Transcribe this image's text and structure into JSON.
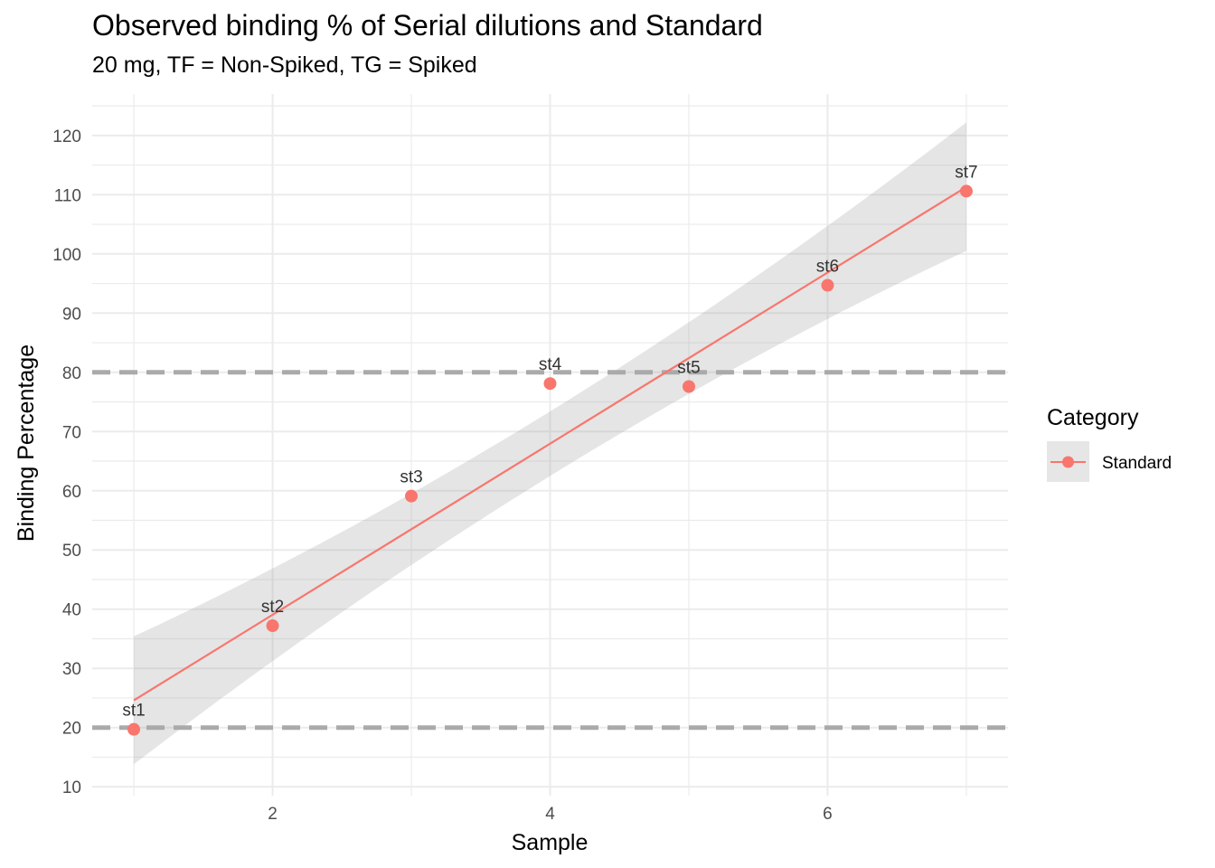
{
  "chart_data": {
    "type": "scatter",
    "title": "Observed binding % of Serial dilutions and Standard",
    "subtitle": "20 mg, TF = Non-Spiked, TG = Spiked",
    "xlabel": "Sample",
    "ylabel": "Binding Percentage",
    "xlim": [
      0.7,
      7.3
    ],
    "ylim": [
      8.5,
      127
    ],
    "x_ticks": [
      2,
      4,
      6
    ],
    "y_ticks": [
      10,
      20,
      30,
      40,
      50,
      60,
      70,
      80,
      90,
      100,
      110,
      120
    ],
    "grid": true,
    "series": [
      {
        "name": "Standard",
        "color": "#F8766D",
        "x": [
          1,
          2,
          3,
          4,
          5,
          6,
          7
        ],
        "y": [
          19.7,
          37.2,
          59.1,
          78.1,
          77.6,
          94.7,
          110.6
        ],
        "labels": [
          "st1",
          "st2",
          "st3",
          "st4",
          "st5",
          "st6",
          "st7"
        ]
      }
    ],
    "fit": {
      "type": "linear",
      "x": [
        1,
        7
      ],
      "y": [
        24.6,
        111.3
      ],
      "ci_lower": [
        13.8,
        100.5
      ],
      "ci_upper": [
        35.4,
        122.2
      ],
      "ci_mid_x": 4,
      "ci_mid_lower": [
        62.5
      ],
      "ci_mid_upper": [
        73.4
      ],
      "color": "#F8766D",
      "band_color": "#999999"
    },
    "reference_lines": [
      {
        "y": 20,
        "style": "dashed",
        "color": "#aaaaaa"
      },
      {
        "y": 80,
        "style": "dashed",
        "color": "#aaaaaa"
      }
    ],
    "legend": {
      "title": "Category",
      "position": "right",
      "entries": [
        "Standard"
      ]
    }
  }
}
